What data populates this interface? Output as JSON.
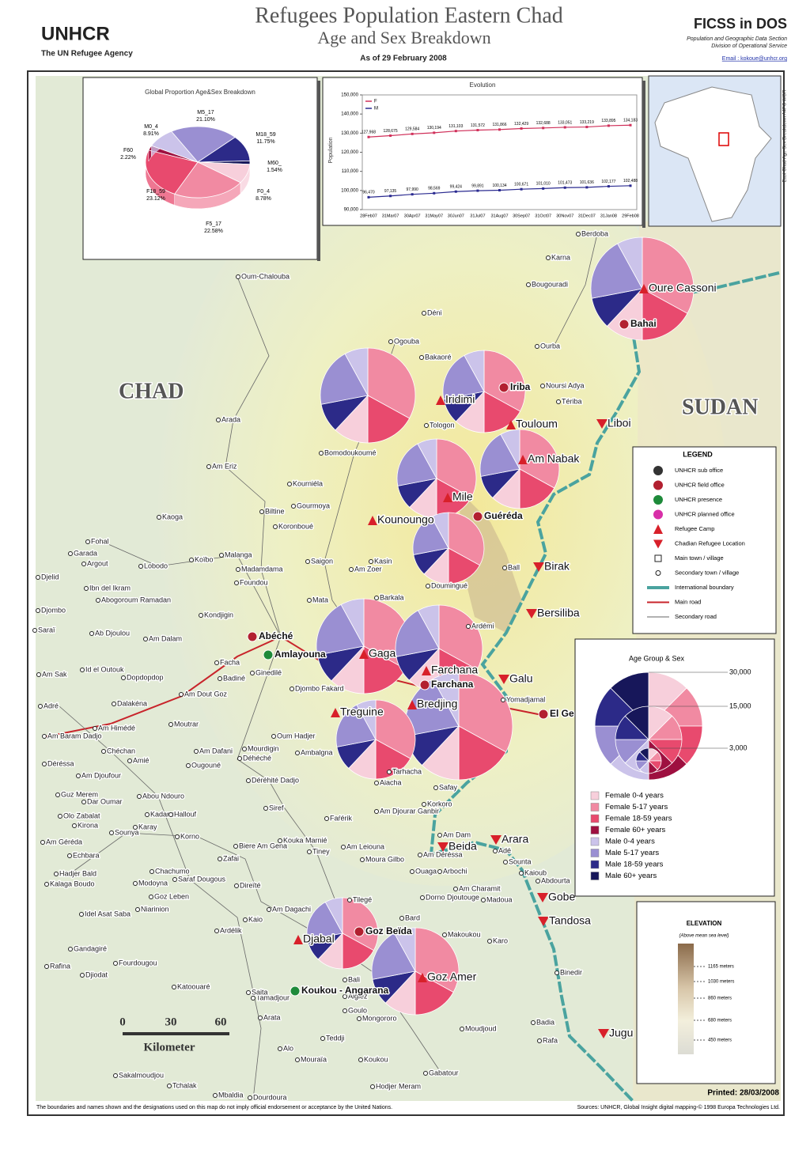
{
  "header": {
    "logo": "UNHCR",
    "logo_sub": "The UN Refugee Agency",
    "title": "Refugees Population Eastern Chad",
    "subtitle": "Age and Sex Breakdown",
    "date": "As of 29 February 2008",
    "org": "FICSS in DOS",
    "org_line1": "Population and Geographic Data Section",
    "org_line2": "Division of Operational Service",
    "email": "Email : kokoue@unhcr.org"
  },
  "chart_data": [
    {
      "type": "pie",
      "title": "Global Proportion Age&Sex Breakdown",
      "categories": [
        "M5_17",
        "M18_59",
        "M60_",
        "F0_4",
        "F5_17",
        "F18_59",
        "F60",
        "M0_4"
      ],
      "values": [
        21.1,
        11.75,
        1.54,
        8.78,
        22.58,
        23.12,
        2.22,
        8.91
      ],
      "value_labels": [
        "21.10%",
        "11.75%",
        "1.54%",
        "8.78%",
        "22.58%",
        "23.12%",
        "2.22%",
        "8.91%"
      ],
      "colors": [
        "#9a8fd2",
        "#2c2a88",
        "#17175a",
        "#f7cfdb",
        "#f18aa2",
        "#e84a6e",
        "#9e1040",
        "#cbc3ea"
      ]
    },
    {
      "type": "line",
      "title": "Evolution",
      "y_label": "Population",
      "x": [
        "28Feb07",
        "31Mar07",
        "30Apr07",
        "31May07",
        "30Jun07",
        "31Jul07",
        "31Aug07",
        "30Sep07",
        "31Oct07",
        "30Nov07",
        "31Dec07",
        "31Jan08",
        "29Feb08"
      ],
      "series": [
        {
          "name": "F",
          "color": "#d0305a",
          "values": [
            127968,
            128675,
            129584,
            130194,
            131103,
            131572,
            131866,
            132429,
            132688,
            133051,
            133219,
            133895,
            134183
          ],
          "value_labels": [
            "127,968",
            "128,675",
            "129,584",
            "130,194",
            "131,103",
            "131,572",
            "131,866",
            "132,429",
            "132,688",
            "133,051",
            "133,219",
            "133,895",
            "134,183"
          ]
        },
        {
          "name": "M",
          "color": "#2a2a90",
          "values": [
            96470,
            97135,
            97990,
            98569,
            99424,
            99891,
            100134,
            100671,
            101010,
            101473,
            101636,
            102177,
            102488
          ],
          "value_labels": [
            "96,470",
            "97,135",
            "97,990",
            "98,569",
            "99,424",
            "99,891",
            "100,134",
            "100,671",
            "101,010",
            "101,473",
            "101,636",
            "102,177",
            "102,488"
          ]
        }
      ],
      "ylim": [
        90000,
        150000
      ],
      "yticks": [
        {
          "value": 90000,
          "label": "90,000"
        },
        {
          "value": 100000,
          "label": "100,000"
        },
        {
          "value": 110000,
          "label": "110,000"
        },
        {
          "value": 120000,
          "label": "120,000"
        },
        {
          "value": 130000,
          "label": "130,000"
        },
        {
          "value": 140000,
          "label": "140,000"
        },
        {
          "value": 150000,
          "label": "150,000"
        }
      ],
      "grid": false
    }
  ],
  "map": {
    "countries": [
      "CHAD",
      "SUDAN"
    ],
    "inset_caption": "East Chad Age Sex Breakdown A4PC WGR",
    "camps": [
      "Oure Cassoni",
      "Bahai",
      "Iridimi",
      "Iriba",
      "Touloum",
      "Liboi",
      "Am Nabak",
      "Mile",
      "Kounoungo",
      "Guéréda",
      "Birak",
      "Bersiliba",
      "Amlayouna",
      "Gaga",
      "Farchana",
      "Farchana",
      "Galu",
      "Bredjing",
      "Treguine",
      "El Ge",
      "Arara",
      "Beida",
      "Gobe",
      "Tandosa",
      "Goz Beïda",
      "Djabal",
      "Goz Amer",
      "Koukou - Angarana",
      "Jugu",
      "Abéché"
    ],
    "places": [
      "Berdoba",
      "Karna",
      "Bougouradi",
      "Oum-Chalouba",
      "Déni",
      "Ogouba",
      "Ourba",
      "Bakaoré",
      "Noursi Adya",
      "Tériba",
      "Tologon",
      "Arada",
      "Bomodoukoumé",
      "Am Eriz",
      "Kourniéla",
      "Biltine",
      "Gourmoya",
      "Kaoga",
      "Koronboué",
      "Fohal",
      "Garada",
      "Argout",
      "Lobodo",
      "Koïbo",
      "Malanga",
      "Madamdama",
      "Saigon",
      "Kasin",
      "Am Zoer",
      "Djelid",
      "Ibn del Ikram",
      "Foundou",
      "Abogoroum Ramadan",
      "Barkala",
      "Mata",
      "Doumingué",
      "Ball",
      "Djombo",
      "Kondjigin",
      "Ardémi",
      "Saraï",
      "Ab Djoulou",
      "Am Dalam",
      "Facha",
      "Id el Outouk",
      "Am Sak",
      "Dopdopdop",
      "Badiné",
      "Ginedilé",
      "Djombo Fakard",
      "Am Dout Goz",
      "Yomadjamal",
      "Adré",
      "Dalakéna",
      "Am Himédé",
      "Moutrar",
      "Am Baram Dadjo",
      "Oum Hadjer",
      "Chéchan",
      "Am Dafani",
      "Mourdigin",
      "Ambalgna",
      "Amié",
      "Déhéché",
      "Ougouné",
      "Déréssa",
      "Am Djoufour",
      "Déréhité Dadjo",
      "Tarhacha",
      "Aiacha",
      "Safay",
      "Guz Merem",
      "Dar Oumar",
      "Abou Ndouro",
      "Kadana",
      "Hallouf",
      "Siref",
      "Am Djourar Ganbir",
      "Korkoro",
      "Olo Zabalat",
      "Kirona",
      "Karay",
      "Faŕérik",
      "Sounya",
      "Am Géréda",
      "Korno",
      "Kouka Marnié",
      "Am Dam",
      "Biere Am Gena",
      "Am Leiouna",
      "Tiney",
      "Echbara",
      "Zafai",
      "Moura Gilbo",
      "Am Déréssa",
      "Sounta",
      "Adé",
      "Hadjer Bald",
      "Chachumo",
      "Ouaga",
      "Arbochi",
      "Kaioub",
      "Kalaga Boudo",
      "Modoyna",
      "Saraf Dougous",
      "Direïté",
      "Am Charamit",
      "Abdourta",
      "Dorno Djoutouge",
      "Madoua",
      "Goz Leben",
      "Niarinion",
      "Idel Asat Saba",
      "Am Dagachi",
      "Tilegé",
      "Kaio",
      "Ardélik",
      "Bard",
      "Makoukou",
      "Karo",
      "Gandagiré",
      "Rafina",
      "Fourdougou",
      "Djiodat",
      "Bali",
      "Katoouaré",
      "Tamadjour",
      "Saita",
      "Binedir",
      "Goulo",
      "Mongororo",
      "Arata",
      "Teddji",
      "Alo",
      "Badia",
      "Moudjoud",
      "Rafa",
      "Sakalmoudjou",
      "Gabatour",
      "Tchalak",
      "Hodjer Meram",
      "Mbaldia",
      "Dourdoura",
      "Algiez",
      "Mouraïa",
      "Koukou"
    ],
    "scale_ticks": [
      "0",
      "30",
      "60"
    ],
    "scale_unit": "Kilometer",
    "printed": "Printed: 28/03/2008",
    "disclaimer": "The boundaries and names shown and the designations used on this map do not imply official endorsement or acceptance by the United Nations.",
    "sources": "Sources: UNHCR, Global Insight digital mapping-© 1998 Europa Technologies Ltd."
  },
  "legend": {
    "title": "LEGEND",
    "items": [
      "UNHCR sub office",
      "UNHCR field office",
      "UNHCR presence",
      "UNHCR planned office",
      "Refugee Camp",
      "Chadian Refugee Location",
      "Main town / village",
      "Secondary town / village",
      "International boundary",
      "Main road",
      "Secondary road"
    ]
  },
  "age_sex_legend": {
    "title": "Age Group & Sex",
    "scale": [
      "30,000",
      "15,000",
      "3,000"
    ],
    "categories": [
      "Female 0-4 years",
      "Female 5-17 years",
      "Female 18-59 years",
      "Female 60+ years",
      "Male 0-4 years",
      "Male 5-17 years",
      "Male 18-59 years",
      "Male 60+ years"
    ],
    "colors": [
      "#f7cfdb",
      "#f18aa2",
      "#e84a6e",
      "#9e1040",
      "#cbc3ea",
      "#9a8fd2",
      "#2c2a88",
      "#17175a"
    ]
  },
  "elevation": {
    "title": "ELEVATION",
    "subtitle": "(Above mean sea level)",
    "ticks": [
      "1165 meters",
      "1030 meters",
      "860 meters",
      "680 meters",
      "450 meters"
    ]
  }
}
